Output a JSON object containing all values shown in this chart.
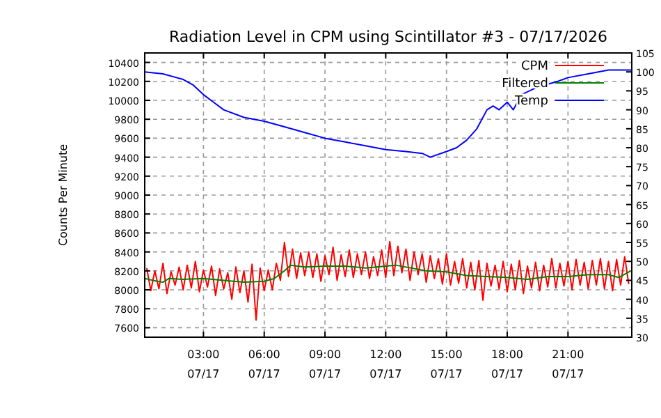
{
  "chart_data": {
    "type": "line",
    "title": "Radiation Level in CPM using Scintillator #3 - 07/17/2026",
    "ylabel": "Counts Per Minute",
    "xlim": [
      "2026-07-17T00:06",
      "2026-07-18T00:09"
    ],
    "xticks": [
      {
        "value": "2026-07-17T03:00",
        "label": "03:00\n07/17"
      },
      {
        "value": "2026-07-17T06:00",
        "label": "06:00\n07/17"
      },
      {
        "value": "2026-07-17T09:00",
        "label": "09:00\n07/17"
      },
      {
        "value": "2026-07-17T12:00",
        "label": "12:00\n07/17"
      },
      {
        "value": "2026-07-17T15:00",
        "label": "15:00\n07/17"
      },
      {
        "value": "2026-07-17T18:00",
        "label": "18:00\n07/17"
      },
      {
        "value": "2026-07-17T21:00",
        "label": "21:00\n07/17"
      }
    ],
    "ylim": [
      7500,
      10500
    ],
    "yticks": [
      7600,
      7800,
      8000,
      8200,
      8400,
      8600,
      8800,
      9000,
      9200,
      9400,
      9600,
      9800,
      10000,
      10200,
      10400
    ],
    "y2lim": [
      30,
      105
    ],
    "y2ticks": [
      30,
      35,
      40,
      45,
      50,
      55,
      60,
      65,
      70,
      75,
      80,
      85,
      90,
      95,
      100,
      105
    ],
    "grid": true,
    "legend": "top right",
    "series": [
      {
        "name": "CPM",
        "color": "#ff0000",
        "x": [
          "2026-07-17T00:12",
          "2026-07-17T00:24",
          "2026-07-17T00:36",
          "2026-07-17T00:48",
          "2026-07-17T01:00",
          "2026-07-17T01:12",
          "2026-07-17T01:24",
          "2026-07-17T01:36",
          "2026-07-17T01:48",
          "2026-07-17T02:00",
          "2026-07-17T02:12",
          "2026-07-17T02:24",
          "2026-07-17T02:36",
          "2026-07-17T02:48",
          "2026-07-17T03:00",
          "2026-07-17T03:12",
          "2026-07-17T03:24",
          "2026-07-17T03:36",
          "2026-07-17T03:48",
          "2026-07-17T04:00",
          "2026-07-17T04:12",
          "2026-07-17T04:24",
          "2026-07-17T04:36",
          "2026-07-17T04:48",
          "2026-07-17T05:00",
          "2026-07-17T05:12",
          "2026-07-17T05:24",
          "2026-07-17T05:36",
          "2026-07-17T05:48",
          "2026-07-17T06:00",
          "2026-07-17T06:12",
          "2026-07-17T06:24",
          "2026-07-17T06:36",
          "2026-07-17T06:48",
          "2026-07-17T07:00",
          "2026-07-17T07:12",
          "2026-07-17T07:24",
          "2026-07-17T07:36",
          "2026-07-17T07:48",
          "2026-07-17T08:00",
          "2026-07-17T08:12",
          "2026-07-17T08:24",
          "2026-07-17T08:36",
          "2026-07-17T08:48",
          "2026-07-17T09:00",
          "2026-07-17T09:12",
          "2026-07-17T09:24",
          "2026-07-17T09:36",
          "2026-07-17T09:48",
          "2026-07-17T10:00",
          "2026-07-17T10:12",
          "2026-07-17T10:24",
          "2026-07-17T10:36",
          "2026-07-17T10:48",
          "2026-07-17T11:00",
          "2026-07-17T11:12",
          "2026-07-17T11:24",
          "2026-07-17T11:36",
          "2026-07-17T11:48",
          "2026-07-17T12:00",
          "2026-07-17T12:12",
          "2026-07-17T12:24",
          "2026-07-17T12:36",
          "2026-07-17T12:48",
          "2026-07-17T13:00",
          "2026-07-17T13:12",
          "2026-07-17T13:24",
          "2026-07-17T13:36",
          "2026-07-17T13:48",
          "2026-07-17T14:00",
          "2026-07-17T14:12",
          "2026-07-17T14:24",
          "2026-07-17T14:36",
          "2026-07-17T14:48",
          "2026-07-17T15:00",
          "2026-07-17T15:12",
          "2026-07-17T15:24",
          "2026-07-17T15:36",
          "2026-07-17T15:48",
          "2026-07-17T16:00",
          "2026-07-17T16:12",
          "2026-07-17T16:24",
          "2026-07-17T16:36",
          "2026-07-17T16:48",
          "2026-07-17T17:00",
          "2026-07-17T17:12",
          "2026-07-17T17:24",
          "2026-07-17T17:36",
          "2026-07-17T17:48",
          "2026-07-17T18:00",
          "2026-07-17T18:12",
          "2026-07-17T18:24",
          "2026-07-17T18:36",
          "2026-07-17T18:48",
          "2026-07-17T19:00",
          "2026-07-17T19:12",
          "2026-07-17T19:24",
          "2026-07-17T19:36",
          "2026-07-17T19:48",
          "2026-07-17T20:00",
          "2026-07-17T20:12",
          "2026-07-17T20:24",
          "2026-07-17T20:36",
          "2026-07-17T20:48",
          "2026-07-17T21:00",
          "2026-07-17T21:12",
          "2026-07-17T21:24",
          "2026-07-17T21:36",
          "2026-07-17T21:48",
          "2026-07-17T22:00",
          "2026-07-17T22:12",
          "2026-07-17T22:24",
          "2026-07-17T22:36",
          "2026-07-17T22:48",
          "2026-07-17T23:00",
          "2026-07-17T23:12",
          "2026-07-17T23:24",
          "2026-07-17T23:36",
          "2026-07-17T23:48",
          "2026-07-18T00:00"
        ],
        "values": [
          8230,
          7990,
          8200,
          8010,
          8280,
          7960,
          8190,
          8050,
          8240,
          8000,
          8260,
          8020,
          8300,
          7980,
          8210,
          8030,
          8250,
          7940,
          8220,
          8010,
          8180,
          7900,
          8240,
          7970,
          8200,
          7870,
          8270,
          7680,
          8230,
          7990,
          8210,
          8000,
          8280,
          8100,
          8500,
          8140,
          8430,
          8120,
          8390,
          8150,
          8400,
          8130,
          8380,
          8090,
          8360,
          8160,
          8450,
          8100,
          8370,
          8140,
          8420,
          8130,
          8380,
          8160,
          8400,
          8120,
          8350,
          8150,
          8420,
          8130,
          8510,
          8150,
          8460,
          8180,
          8430,
          8100,
          8400,
          8160,
          8380,
          8080,
          8360,
          8120,
          8330,
          8060,
          8380,
          8050,
          8300,
          8070,
          8330,
          8020,
          8290,
          8000,
          8310,
          7890,
          8280,
          8040,
          8260,
          8010,
          8300,
          7980,
          8270,
          8000,
          8310,
          7960,
          8250,
          8020,
          8290,
          7990,
          8260,
          8030,
          8330,
          8020,
          8280,
          8040,
          8300,
          8000,
          8320,
          8050,
          8290,
          8010,
          8310,
          8050,
          8330,
          8010,
          8300,
          7990,
          8320,
          8050,
          8350,
          8060
        ]
      },
      {
        "name": "Filtered",
        "color": "#008000",
        "x": [
          "2026-07-17T00:06",
          "2026-07-17T00:30",
          "2026-07-17T01:00",
          "2026-07-17T01:18",
          "2026-07-17T02:00",
          "2026-07-17T03:00",
          "2026-07-17T04:00",
          "2026-07-17T05:00",
          "2026-07-17T06:00",
          "2026-07-17T06:30",
          "2026-07-17T07:00",
          "2026-07-17T07:18",
          "2026-07-17T08:00",
          "2026-07-17T09:00",
          "2026-07-17T10:00",
          "2026-07-17T11:00",
          "2026-07-17T12:00",
          "2026-07-17T12:30",
          "2026-07-17T13:00",
          "2026-07-17T14:00",
          "2026-07-17T15:00",
          "2026-07-17T16:00",
          "2026-07-17T17:00",
          "2026-07-17T18:00",
          "2026-07-17T19:00",
          "2026-07-17T20:00",
          "2026-07-17T21:00",
          "2026-07-17T22:00",
          "2026-07-17T23:00",
          "2026-07-17T23:30",
          "2026-07-18T00:06"
        ],
        "values": [
          8120,
          8100,
          8080,
          8120,
          8110,
          8120,
          8100,
          8080,
          8090,
          8120,
          8200,
          8260,
          8240,
          8250,
          8250,
          8230,
          8250,
          8260,
          8240,
          8200,
          8190,
          8150,
          8140,
          8130,
          8110,
          8140,
          8140,
          8160,
          8160,
          8130,
          8200
        ]
      },
      {
        "name": "Temp",
        "color": "#0000ff",
        "axis": "y2",
        "x": [
          "2026-07-17T00:06",
          "2026-07-17T01:00",
          "2026-07-17T02:00",
          "2026-07-17T02:30",
          "2026-07-17T03:00",
          "2026-07-17T03:30",
          "2026-07-17T04:00",
          "2026-07-17T05:00",
          "2026-07-17T06:00",
          "2026-07-17T07:00",
          "2026-07-17T08:00",
          "2026-07-17T09:00",
          "2026-07-17T10:00",
          "2026-07-17T11:00",
          "2026-07-17T12:00",
          "2026-07-17T13:00",
          "2026-07-17T13:48",
          "2026-07-17T14:12",
          "2026-07-17T15:00",
          "2026-07-17T15:30",
          "2026-07-17T16:00",
          "2026-07-17T16:30",
          "2026-07-17T17:00",
          "2026-07-17T17:18",
          "2026-07-17T17:36",
          "2026-07-17T18:00",
          "2026-07-17T18:18",
          "2026-07-17T18:42",
          "2026-07-17T19:30",
          "2026-07-17T20:30",
          "2026-07-17T21:00",
          "2026-07-17T22:00",
          "2026-07-17T23:00",
          "2026-07-18T00:09"
        ],
        "values": [
          100,
          99.5,
          98,
          96.5,
          94,
          92,
          90,
          88,
          87,
          85.5,
          84,
          82.5,
          81.5,
          80.5,
          79.5,
          79,
          78.5,
          77.5,
          79,
          80,
          82,
          85,
          90,
          91,
          90,
          92,
          90,
          94,
          96,
          97.5,
          98.5,
          99.5,
          100.5,
          100.5
        ]
      }
    ]
  }
}
